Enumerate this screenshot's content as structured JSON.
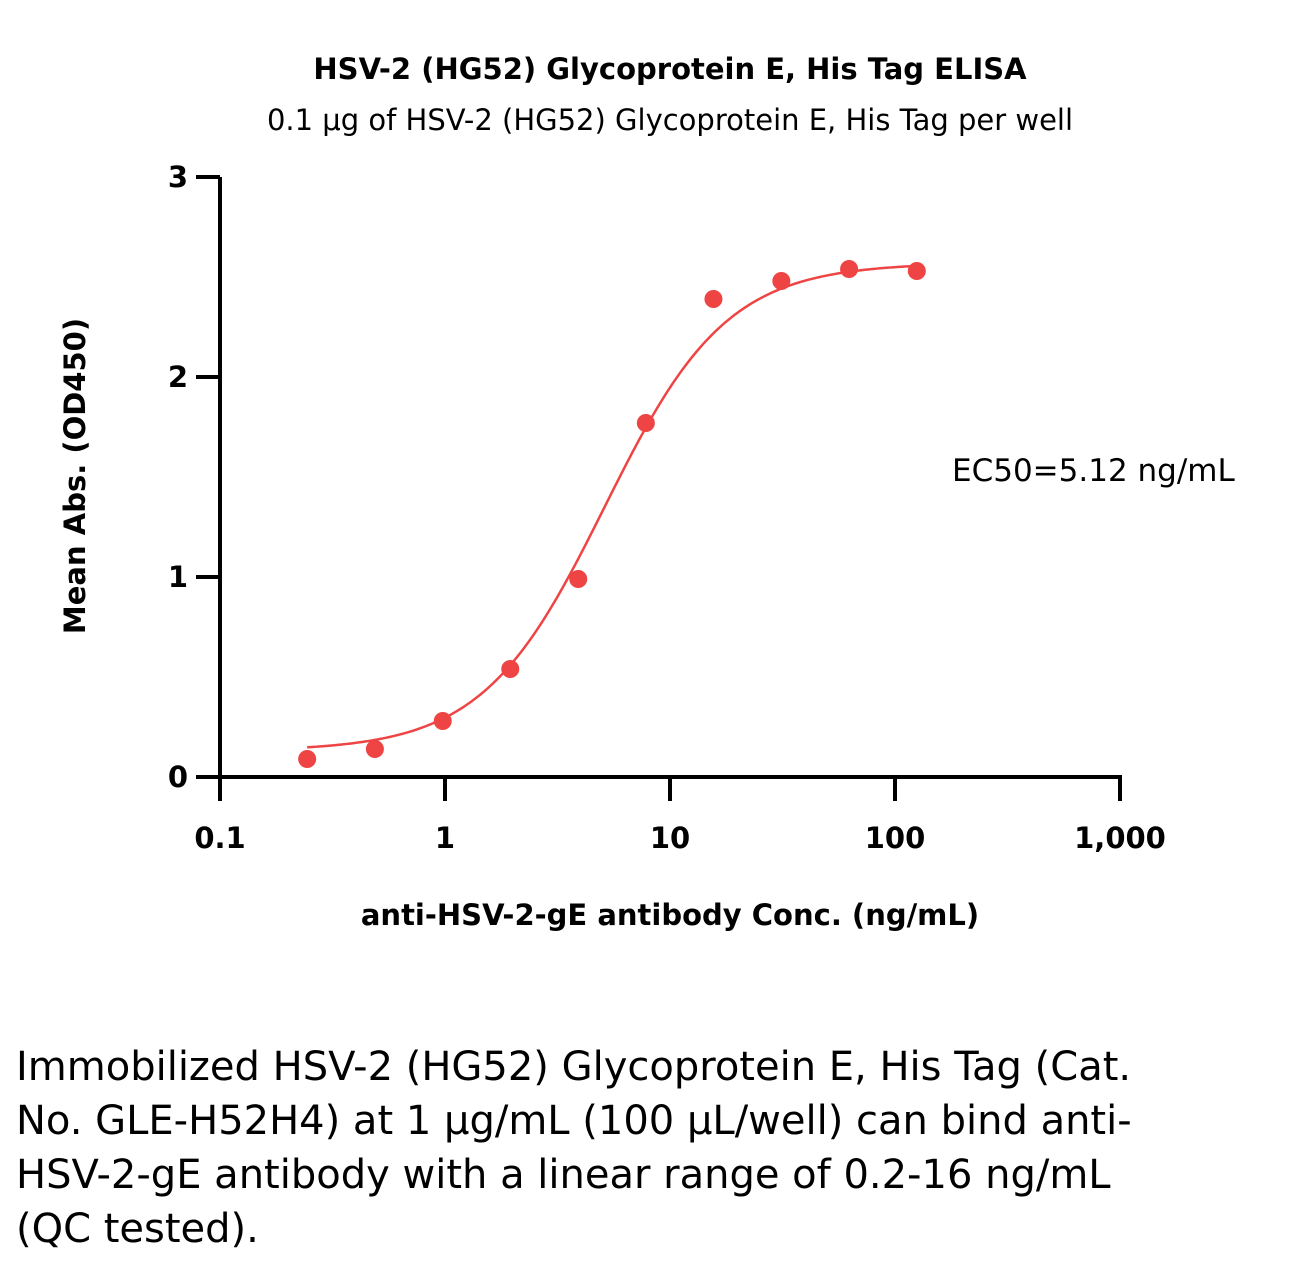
{
  "chart_data": {
    "type": "scatter",
    "title": "HSV-2 (HG52) Glycoprotein E, His Tag ELISA",
    "subtitle": "0.1 μg of HSV-2 (HG52) Glycoprotein E, His Tag per well",
    "xlabel": "anti-HSV-2-gE antibody Conc. (ng/mL)",
    "ylabel": "Mean Abs. (OD450)",
    "x_scale": "log",
    "xlim": [
      0.1,
      1000
    ],
    "ylim": [
      0,
      3
    ],
    "x_ticks": [
      0.1,
      1,
      10,
      100,
      1000
    ],
    "x_tick_labels": [
      "0.1",
      "1",
      "10",
      "100",
      "1,000"
    ],
    "y_ticks": [
      0,
      1,
      2,
      3
    ],
    "y_tick_labels": [
      "0",
      "1",
      "2",
      "3"
    ],
    "grid": false,
    "series": [
      {
        "x": [
          0.244,
          0.488,
          0.977,
          1.95,
          3.91,
          7.81,
          15.6,
          31.25,
          62.5,
          125
        ],
        "y": [
          0.09,
          0.14,
          0.28,
          0.54,
          0.99,
          1.77,
          2.39,
          2.48,
          2.54,
          2.53
        ],
        "color": "#ef4444",
        "fit": {
          "type": "4PL",
          "bottom": 0.13,
          "top": 2.57,
          "ec50": 5.12,
          "hill": 1.6,
          "x_range": [
            0.244,
            125
          ]
        }
      }
    ],
    "annotations": [
      {
        "text": "EC50=5.12 ng/mL"
      }
    ]
  },
  "caption": "Immobilized HSV-2 (HG52) Glycoprotein E, His Tag (Cat. No. GLE-H52H4) at 1 μg/mL (100 μL/well) can bind anti-HSV-2-gE antibody with a linear range of 0.2-16 ng/mL (QC tested)."
}
